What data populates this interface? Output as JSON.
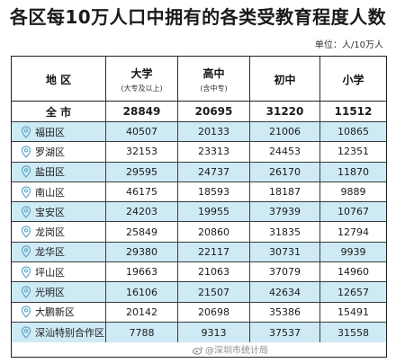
{
  "header": {
    "title": "各区每10万人口中拥有的各类受教育程度人数",
    "unit": "单位：人/10万人"
  },
  "table": {
    "columns": [
      {
        "label": "地 区",
        "sub": ""
      },
      {
        "label": "大学",
        "sub": "(大专及以上)"
      },
      {
        "label": "高中",
        "sub": "(含中专)"
      },
      {
        "label": "初中",
        "sub": ""
      },
      {
        "label": "小学",
        "sub": ""
      }
    ],
    "total": {
      "name": "全 市",
      "values": [
        "28849",
        "20695",
        "31220",
        "11512"
      ]
    },
    "rows": [
      {
        "name": "福田区",
        "values": [
          "40507",
          "20133",
          "21006",
          "10865"
        ]
      },
      {
        "name": "罗湖区",
        "values": [
          "32153",
          "23313",
          "24453",
          "12351"
        ]
      },
      {
        "name": "盐田区",
        "values": [
          "29595",
          "24737",
          "26170",
          "11870"
        ]
      },
      {
        "name": "南山区",
        "values": [
          "46175",
          "18593",
          "18187",
          "9889"
        ]
      },
      {
        "name": "宝安区",
        "values": [
          "24203",
          "19955",
          "37939",
          "10767"
        ]
      },
      {
        "name": "龙岗区",
        "values": [
          "25849",
          "20860",
          "31835",
          "12794"
        ]
      },
      {
        "name": "龙华区",
        "values": [
          "29380",
          "22117",
          "30731",
          "9939"
        ]
      },
      {
        "name": "坪山区",
        "values": [
          "19663",
          "21063",
          "37079",
          "14960"
        ]
      },
      {
        "name": "光明区",
        "values": [
          "16106",
          "21507",
          "42634",
          "12657"
        ]
      },
      {
        "name": "大鹏新区",
        "values": [
          "20142",
          "20698",
          "35386",
          "15491"
        ]
      },
      {
        "name": "深汕特别合作区",
        "values": [
          "7788",
          "9313",
          "37537",
          "31558"
        ]
      }
    ]
  },
  "watermark": "@深圳市统计局",
  "colors": {
    "row_blue": "#cdeaf5",
    "pin": "#5aa9c9",
    "border": "#1f1f1f"
  }
}
